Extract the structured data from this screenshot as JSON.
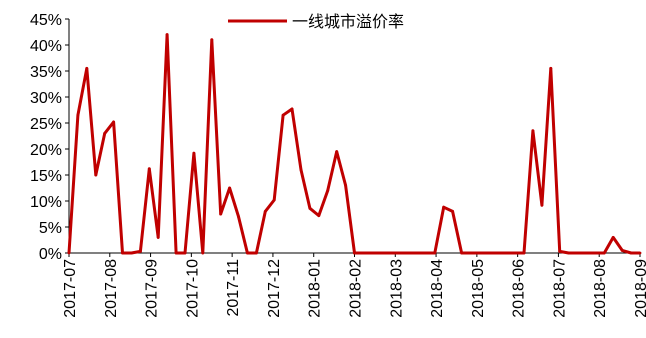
{
  "chart_data": {
    "type": "line",
    "series": [
      {
        "name": "一线城市溢价率",
        "color": "#c00000",
        "values": [
          0,
          26.5,
          35.5,
          15,
          23,
          25.2,
          0,
          0,
          0.3,
          16.2,
          3,
          42,
          0,
          0,
          19.2,
          0,
          41,
          7.5,
          12.5,
          7,
          0,
          0,
          8,
          10.2,
          26.5,
          27.7,
          16,
          8.6,
          7.2,
          12,
          19.5,
          13,
          0,
          0,
          0,
          0,
          0,
          0,
          0,
          0,
          0,
          0,
          8.8,
          8,
          0,
          0,
          0,
          0,
          0,
          0,
          0,
          0,
          23.5,
          9.2,
          35.5,
          0.3,
          0,
          0,
          0,
          0,
          0,
          3,
          0.5,
          0,
          0
        ]
      }
    ],
    "x_tick_labels": [
      "2017-07",
      "2017-08",
      "2017-09",
      "2017-10",
      "2017-11",
      "2017-12",
      "2018-01",
      "2018-02",
      "2018-03",
      "2018-04",
      "2018-05",
      "2018-06",
      "2018-07",
      "2018-08",
      "2018-09"
    ],
    "y_tick_labels": [
      "0%",
      "5%",
      "10%",
      "15%",
      "20%",
      "25%",
      "30%",
      "35%",
      "40%",
      "45%"
    ],
    "ylim": [
      0,
      45
    ],
    "grid": false,
    "legend_position": "top-center"
  }
}
